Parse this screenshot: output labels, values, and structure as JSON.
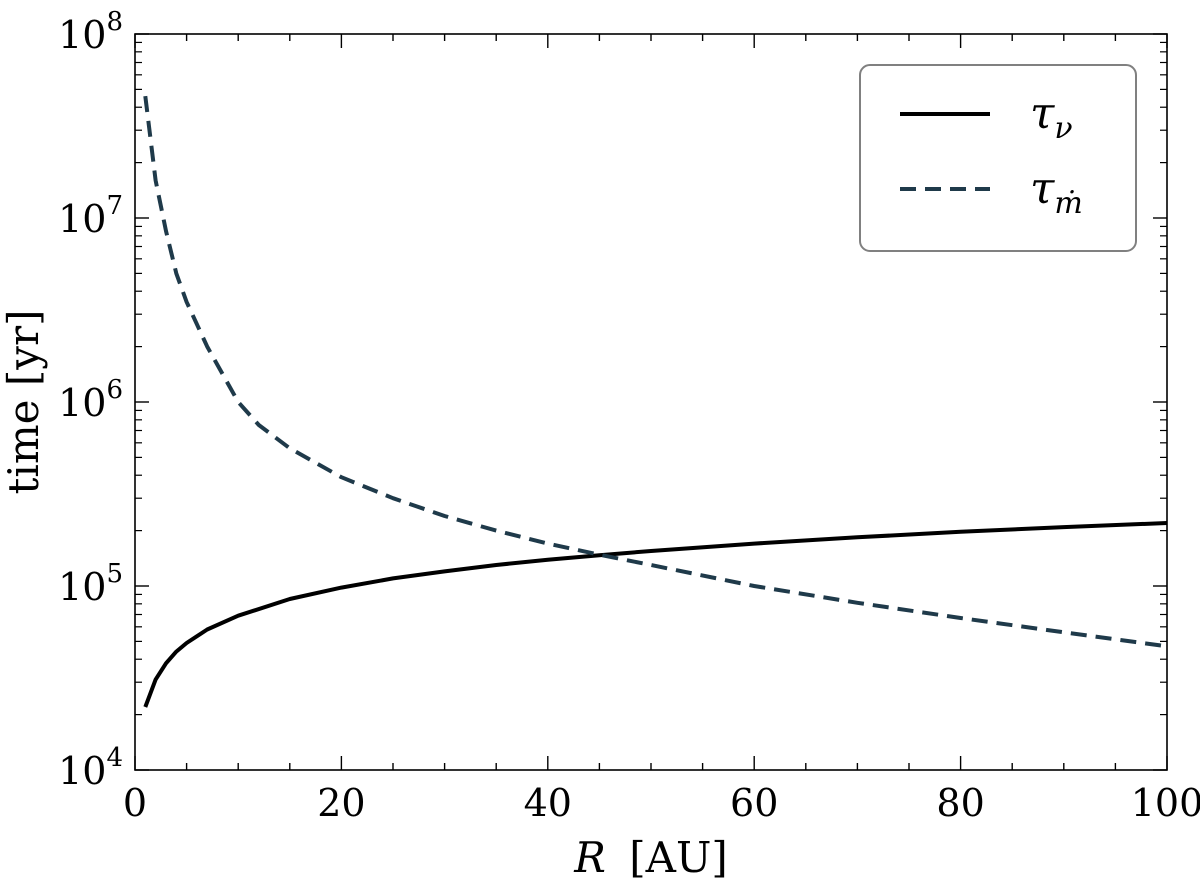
{
  "chart_data": {
    "type": "line",
    "xlabel": {
      "var": "R",
      "unit": "[AU]"
    },
    "ylabel": "time [yr]",
    "xlim": [
      0,
      100
    ],
    "ylim": [
      10000,
      100000000
    ],
    "yscale": "log",
    "x_ticks": [
      0,
      20,
      40,
      60,
      80,
      100
    ],
    "x_tick_labels": [
      "0",
      "20",
      "40",
      "60",
      "80",
      "100"
    ],
    "y_ticks": [
      10000,
      100000,
      1000000,
      10000000,
      100000000
    ],
    "y_tick_labels": [
      {
        "base": "10",
        "exp": "4"
      },
      {
        "base": "10",
        "exp": "5"
      },
      {
        "base": "10",
        "exp": "6"
      },
      {
        "base": "10",
        "exp": "7"
      },
      {
        "base": "10",
        "exp": "8"
      }
    ],
    "grid": false,
    "legend": {
      "position": "top-right"
    },
    "series": [
      {
        "name": "τν",
        "label_main": "τ",
        "label_sub": "ν",
        "style": "solid",
        "color": "#000000",
        "x": [
          1,
          2,
          3,
          4,
          5,
          7,
          10,
          15,
          20,
          25,
          30,
          35,
          40,
          45,
          50,
          60,
          70,
          80,
          90,
          100
        ],
        "y": [
          22000,
          31000,
          38000,
          44000,
          49000,
          58000,
          69000,
          85000,
          98000,
          110000,
          120000,
          130000,
          139000,
          147000,
          155000,
          170000,
          184000,
          197000,
          209000,
          220000
        ]
      },
      {
        "name": "τṁ",
        "label_main": "τ",
        "label_sub": "ṁ",
        "style": "dashed",
        "color": "#1f3a4a",
        "x": [
          1,
          2,
          3,
          4,
          5,
          7,
          10,
          12,
          15,
          20,
          25,
          30,
          35,
          40,
          45,
          50,
          60,
          70,
          80,
          90,
          100
        ],
        "y": [
          46000000,
          16000000,
          8500000,
          5000000,
          3500000,
          2000000,
          1000000,
          750000,
          560000,
          390000,
          300000,
          240000,
          200000,
          170000,
          148000,
          130000,
          100000,
          81000,
          67000,
          56000,
          47000
        ]
      }
    ]
  }
}
